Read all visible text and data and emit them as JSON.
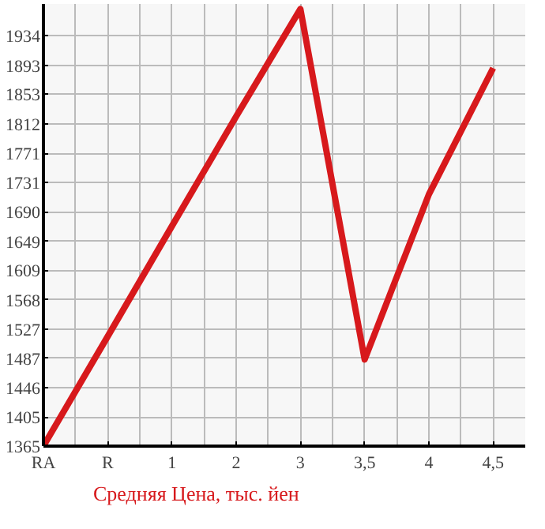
{
  "chart_data": {
    "type": "line",
    "categories": [
      "RA",
      "R",
      "1",
      "2",
      "3",
      "3,5",
      "4",
      "4,5"
    ],
    "series": [
      {
        "name": "Средняя Цена, тыс. йен",
        "color": "#d7191c",
        "values": [
          1365,
          1517,
          1670,
          1822,
          1971,
          1485,
          1714,
          1889
        ]
      }
    ],
    "ylim": [
      1365,
      1978
    ],
    "yticks": [
      1365,
      1405,
      1446,
      1487,
      1527,
      1568,
      1609,
      1649,
      1690,
      1731,
      1771,
      1812,
      1853,
      1893,
      1934
    ],
    "grid": true,
    "legend": "bottom",
    "marker": "none",
    "line_style": "solid"
  }
}
